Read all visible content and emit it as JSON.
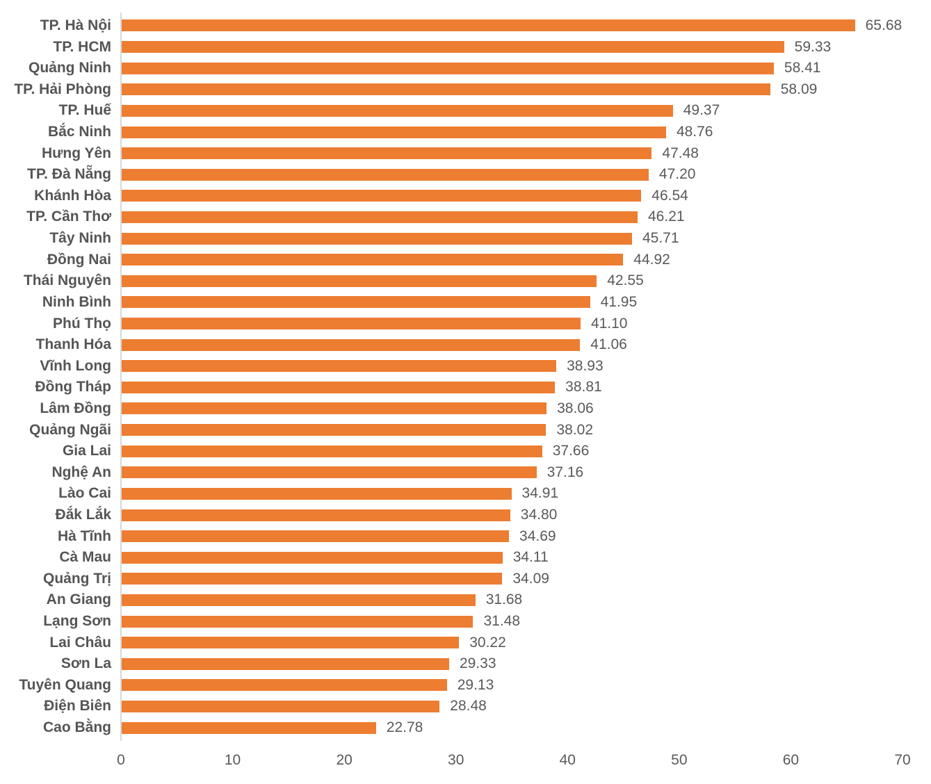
{
  "chart_data": {
    "type": "bar",
    "orientation": "horizontal",
    "title": "",
    "xlabel": "",
    "ylabel": "",
    "grid": false,
    "legend": "none",
    "xlim": [
      0,
      70
    ],
    "x_ticks": [
      0,
      10,
      20,
      30,
      40,
      50,
      60,
      70
    ],
    "value_format": "0.00",
    "categories": [
      "TP. Hà Nội",
      "TP. HCM",
      "Quảng Ninh",
      "TP. Hải Phòng",
      "TP. Huế",
      "Bắc Ninh",
      "Hưng Yên",
      "TP. Đà Nẵng",
      "Khánh Hòa",
      "TP. Cần Thơ",
      "Tây Ninh",
      "Đồng Nai",
      "Thái Nguyên",
      "Ninh Bình",
      "Phú Thọ",
      "Thanh Hóa",
      "Vĩnh Long",
      "Đồng Tháp",
      "Lâm Đồng",
      "Quảng Ngãi",
      "Gia Lai",
      "Nghệ An",
      "Lào Cai",
      "Đắk Lắk",
      "Hà Tĩnh",
      "Cà Mau",
      "Quảng Trị",
      "An Giang",
      "Lạng Sơn",
      "Lai Châu",
      "Sơn La",
      "Tuyên Quang",
      "Điện Biên",
      "Cao Bằng"
    ],
    "values": [
      65.68,
      59.33,
      58.41,
      58.09,
      49.37,
      48.76,
      47.48,
      47.2,
      46.54,
      46.21,
      45.71,
      44.92,
      42.55,
      41.95,
      41.1,
      41.06,
      38.93,
      38.81,
      38.06,
      38.02,
      37.66,
      37.16,
      34.91,
      34.8,
      34.69,
      34.11,
      34.09,
      31.68,
      31.48,
      30.22,
      29.33,
      29.13,
      28.48,
      22.78
    ],
    "colors": {
      "bar": "#ED7D31",
      "category_label": "#555555",
      "value_label": "#595959",
      "tick_label": "#595959",
      "axis_line": "#D8D8D8",
      "background": "#FFFFFF"
    }
  }
}
